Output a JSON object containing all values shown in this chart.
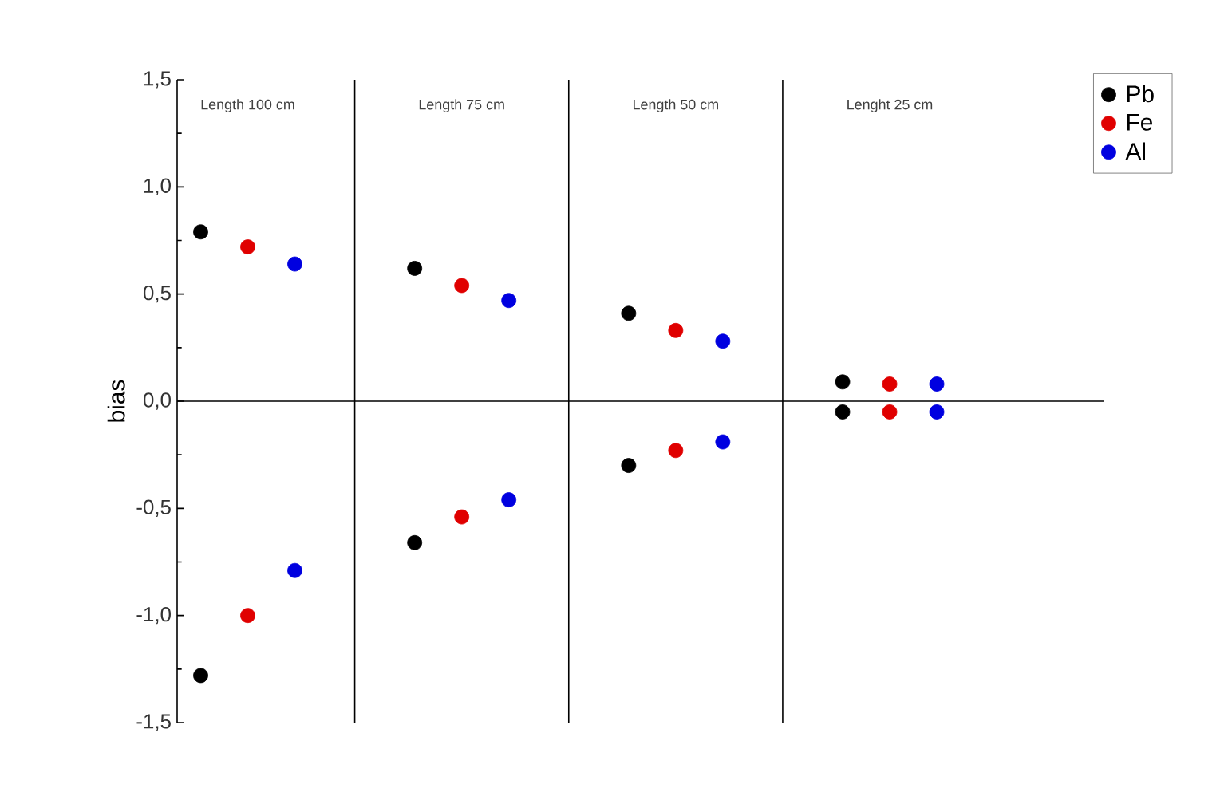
{
  "chart_data": {
    "type": "scatter",
    "ylabel": "bias",
    "categories": [
      "Length 100 cm",
      "Length 75 cm",
      "Length 50 cm",
      "Lenght 25 cm"
    ],
    "series": [
      {
        "name": "Pb",
        "color": "#000000",
        "values": [
          0.79,
          0.62,
          0.41,
          0.09
        ]
      },
      {
        "name": "Fe",
        "color": "#e00000",
        "values": [
          0.72,
          0.54,
          0.33,
          0.08
        ]
      },
      {
        "name": "Al",
        "color": "#0000e0",
        "values": [
          0.64,
          0.47,
          0.28,
          0.08
        ]
      },
      {
        "color": "#000000",
        "values": [
          -1.28,
          -0.66,
          -0.3,
          -0.05
        ]
      },
      {
        "color": "#e00000",
        "values": [
          -1.0,
          -0.54,
          -0.23,
          -0.05
        ]
      },
      {
        "color": "#0000e0",
        "values": [
          -0.79,
          -0.46,
          -0.19,
          -0.05
        ]
      }
    ],
    "ylim": [
      -1.5,
      1.5
    ],
    "yticks": [
      {
        "value": -1.5,
        "label": "-1,5"
      },
      {
        "value": -1.0,
        "label": "-1,0"
      },
      {
        "value": -0.5,
        "label": "-0,5"
      },
      {
        "value": 0.0,
        "label": "0,0"
      },
      {
        "value": 0.5,
        "label": "0,5"
      },
      {
        "value": 1.0,
        "label": "1,0"
      },
      {
        "value": 1.5,
        "label": "1,5"
      }
    ],
    "ref_lines": [
      {
        "axis": "y",
        "value": 0
      }
    ],
    "grid": "x",
    "legend": "top right"
  }
}
